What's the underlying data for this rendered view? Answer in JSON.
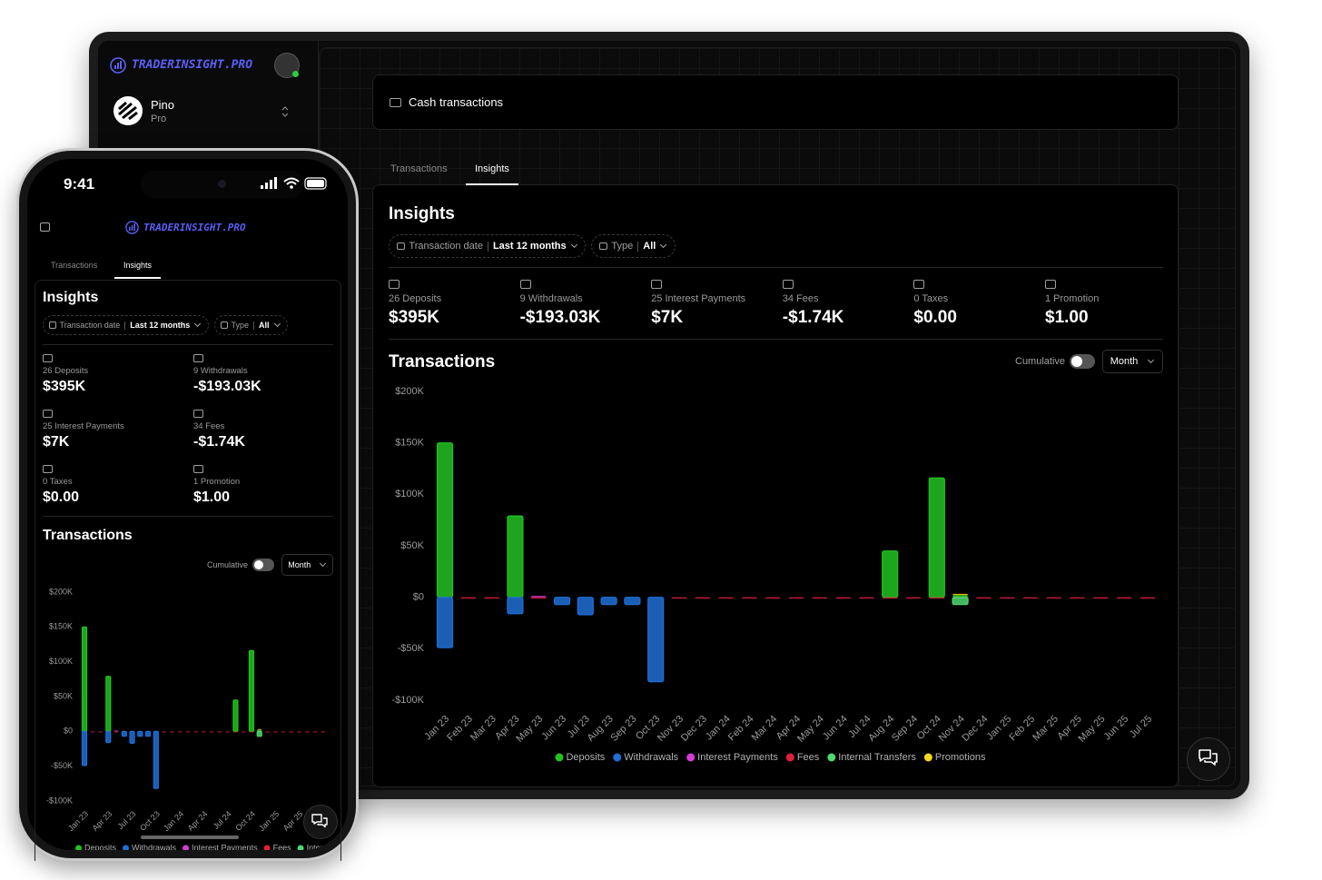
{
  "brand": "TRADERINSIGHT.PRO",
  "user": {
    "name": "Pino",
    "plan": "Pro"
  },
  "status_bar": {
    "time": "9:41"
  },
  "page_header": "Cash transactions",
  "tabs": [
    "Transactions",
    "Insights"
  ],
  "active_tab": "Insights",
  "insights": {
    "title": "Insights",
    "filters": [
      {
        "label": "Transaction date",
        "value": "Last 12 months"
      },
      {
        "label": "Type",
        "value": "All"
      }
    ],
    "stats": [
      {
        "label": "26 Deposits",
        "value": "$395K"
      },
      {
        "label": "9 Withdrawals",
        "value": "-$193.03K"
      },
      {
        "label": "25 Interest Payments",
        "value": "$7K"
      },
      {
        "label": "34 Fees",
        "value": "-$1.74K"
      },
      {
        "label": "0 Taxes",
        "value": "$0.00"
      },
      {
        "label": "1 Promotion",
        "value": "$1.00"
      }
    ]
  },
  "transactions": {
    "title": "Transactions",
    "toggle": "Cumulative",
    "cumulative": false,
    "period": "Month"
  },
  "chart_data": {
    "type": "bar",
    "stacked": true,
    "grid": false,
    "legend": "bottom",
    "categories": [
      "Jan 23",
      "Feb 23",
      "Mar 23",
      "Apr 23",
      "May 23",
      "Jun 23",
      "Jul 23",
      "Aug 23",
      "Sep 23",
      "Oct 23",
      "Nov 23",
      "Dec 23",
      "Jan 24",
      "Feb 24",
      "Mar 24",
      "Apr 24",
      "May 24",
      "Jun 24",
      "Jul 24",
      "Aug 24",
      "Sep 24",
      "Oct 24",
      "Nov 24",
      "Dec 24",
      "Jan 25",
      "Feb 25",
      "Mar 25",
      "Apr 25",
      "May 25",
      "Jun 25",
      "Jul 25"
    ],
    "series": [
      {
        "name": "Deposits",
        "color": "#22c322",
        "values": [
          150000,
          0,
          0,
          79000,
          0,
          0,
          0,
          0,
          0,
          0,
          0,
          0,
          0,
          0,
          0,
          0,
          0,
          0,
          0,
          45000,
          0,
          116000,
          2000,
          0,
          0,
          0,
          0,
          0,
          0,
          0,
          0
        ]
      },
      {
        "name": "Withdrawals",
        "color": "#1f6fd6",
        "values": [
          -49000,
          0,
          0,
          -16000,
          0,
          -7000,
          -17000,
          -7000,
          -7000,
          -82000,
          0,
          0,
          0,
          0,
          0,
          0,
          0,
          0,
          0,
          0,
          0,
          0,
          0,
          0,
          0,
          0,
          0,
          0,
          0,
          0,
          0
        ]
      },
      {
        "name": "Interest Payments",
        "color": "#d63cd6",
        "values": [
          0,
          0,
          0,
          0,
          1000,
          0,
          0,
          0,
          0,
          0,
          0,
          0,
          0,
          0,
          0,
          0,
          0,
          0,
          0,
          0,
          0,
          0,
          0,
          0,
          0,
          0,
          0,
          0,
          0,
          0,
          0
        ]
      },
      {
        "name": "Fees",
        "color": "#e0203c",
        "values": [
          0,
          -60,
          -60,
          0,
          -60,
          0,
          0,
          0,
          0,
          0,
          -60,
          -60,
          -60,
          -60,
          -60,
          -60,
          -60,
          -60,
          -60,
          -60,
          -60,
          -60,
          -60,
          -60,
          -60,
          -60,
          -60,
          -60,
          -60,
          -60,
          -60
        ]
      },
      {
        "name": "Internal Transfers",
        "color": "#4fd870",
        "values": [
          0,
          0,
          0,
          0,
          0,
          0,
          0,
          0,
          0,
          0,
          0,
          0,
          0,
          0,
          0,
          0,
          0,
          0,
          0,
          0,
          0,
          0,
          -7000,
          0,
          0,
          0,
          0,
          0,
          0,
          0,
          0
        ]
      },
      {
        "name": "Promotions",
        "color": "#f2d81c",
        "values": [
          0,
          0,
          0,
          0,
          0,
          0,
          0,
          0,
          0,
          0,
          0,
          0,
          0,
          0,
          0,
          0,
          0,
          0,
          0,
          0,
          0,
          0,
          1,
          0,
          0,
          0,
          0,
          0,
          0,
          0,
          0
        ]
      }
    ],
    "ylim": [
      -100000,
      200000
    ],
    "yticks": [
      {
        "value": 200000,
        "label": "$200K"
      },
      {
        "value": 150000,
        "label": "$150K"
      },
      {
        "value": 100000,
        "label": "$100K"
      },
      {
        "value": 50000,
        "label": "$50K"
      },
      {
        "value": 0,
        "label": "$0"
      },
      {
        "value": -50000,
        "label": "-$50K"
      },
      {
        "value": -100000,
        "label": "-$100K"
      }
    ]
  }
}
